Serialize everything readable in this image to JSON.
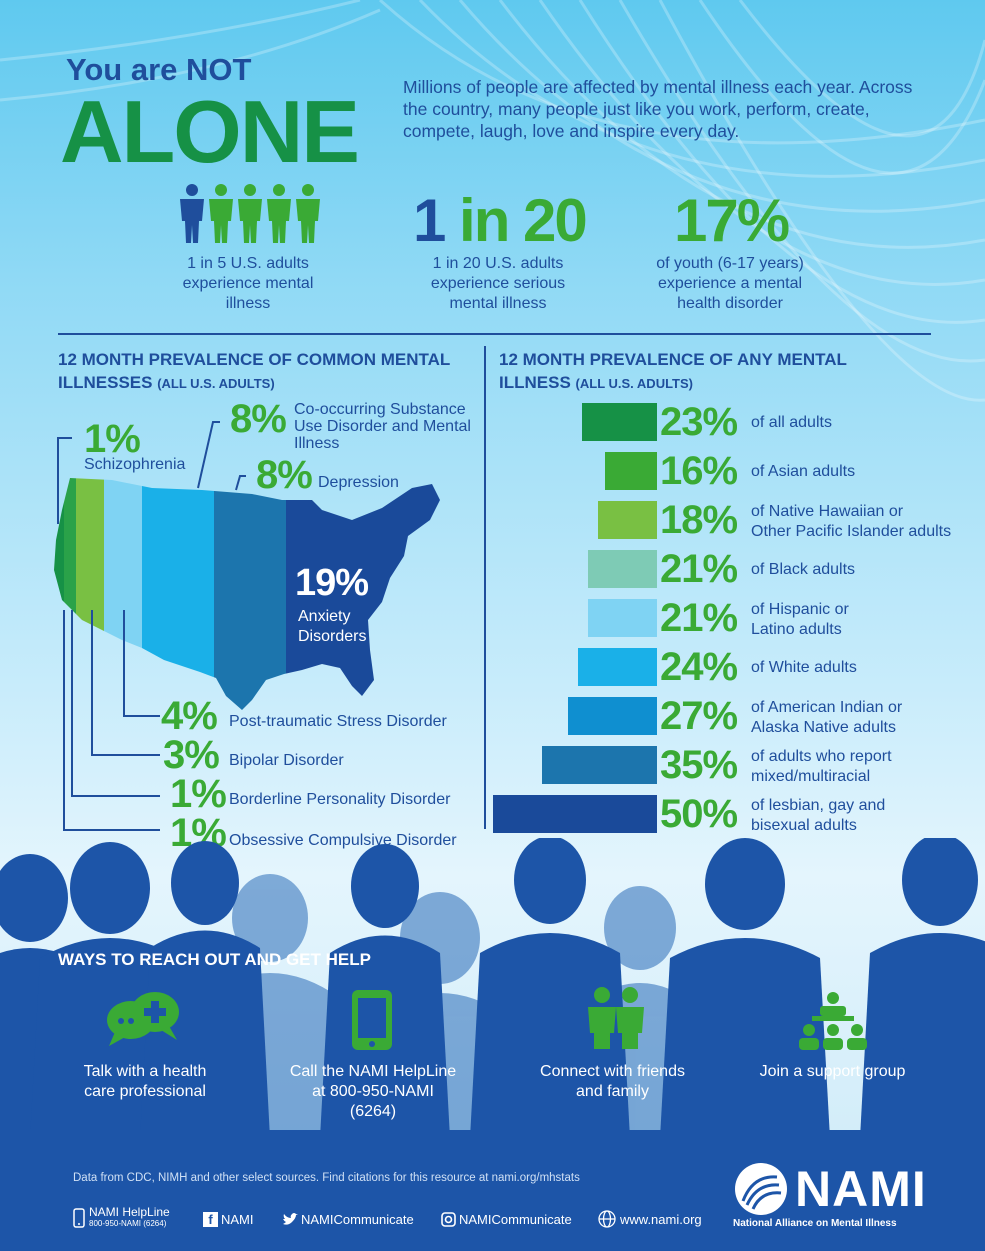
{
  "header": {
    "title_top": "You are NOT",
    "title_big": "ALONE",
    "intro": "Millions of people are affected by mental illness each year. Across the country, many people just like you work, perform, create, compete, laugh, love and inspire every day."
  },
  "stats": [
    {
      "label": "1 in 5 U.S. adults experience mental illness"
    },
    {
      "big_a": "1",
      "big_b": " in 20",
      "label": "1 in 20 U.S. adults experience serious mental illness"
    },
    {
      "big": "17%",
      "label": "of youth (6-17 years) experience a mental health disorder"
    }
  ],
  "left_section": {
    "title": "12 MONTH PREVALENCE OF COMMON MENTAL ILLNESSES",
    "subtitle": "(ALL U.S. ADULTS)",
    "items": [
      {
        "pct": "1%",
        "label": "Schizophrenia"
      },
      {
        "pct": "8%",
        "label": "Co-occurring Substance Use Disorder and Mental Illness"
      },
      {
        "pct": "8%",
        "label": "Depression"
      },
      {
        "pct": "19%",
        "label": "Anxiety Disorders"
      },
      {
        "pct": "4%",
        "label": "Post-traumatic Stress Disorder"
      },
      {
        "pct": "3%",
        "label": "Bipolar Disorder"
      },
      {
        "pct": "1%",
        "label": "Borderline Personality Disorder"
      },
      {
        "pct": "1%",
        "label": "Obsessive Compulsive Disorder"
      }
    ]
  },
  "right_section": {
    "title_line1": "12 MONTH PREVALENCE OF ANY MENTAL",
    "title_line2": "ILLNESS",
    "subtitle": "(ALL U.S. ADULTS)"
  },
  "chart_data": {
    "type": "bar",
    "orientation": "horizontal",
    "categories": [
      "of all adults",
      "of Asian adults",
      "of Native Hawaiian or Other Pacific Islander adults",
      "of Black adults",
      "of Hispanic or Latino adults",
      "of White adults",
      "of American Indian or Alaska Native adults",
      "of adults who report mixed/multiracial",
      "of lesbian, gay and bisexual adults"
    ],
    "values": [
      23,
      16,
      18,
      21,
      21,
      24,
      27,
      35,
      50
    ],
    "labels": [
      "23%",
      "16%",
      "18%",
      "21%",
      "21%",
      "24%",
      "27%",
      "35%",
      "50%"
    ],
    "label_lines": [
      [
        "of all adults"
      ],
      [
        "of Asian adults"
      ],
      [
        "of Native Hawaiian or",
        "Other Pacific Islander adults"
      ],
      [
        "of Black adults"
      ],
      [
        "of Hispanic or",
        "Latino adults"
      ],
      [
        "of White adults"
      ],
      [
        "of American Indian or",
        "Alaska Native adults"
      ],
      [
        "of adults who report",
        "mixed/multiracial"
      ],
      [
        "of lesbian, gay and",
        "bisexual adults"
      ]
    ],
    "colors": [
      "#169146",
      "#3aaa35",
      "#79c043",
      "#7ecbb5",
      "#7fd3f3",
      "#1ab0e8",
      "#0f8fd0",
      "#1c75ad",
      "#1a4a9a"
    ]
  },
  "help": {
    "title": "WAYS TO REACH OUT AND GET HELP",
    "items": [
      {
        "icon": "chat-plus-icon",
        "label": "Talk with a health care professional"
      },
      {
        "icon": "phone-icon",
        "label": "Call the NAMI HelpLine at 800-950-NAMI (6264)"
      },
      {
        "icon": "people-icon",
        "label": "Connect with friends and family"
      },
      {
        "icon": "group-icon",
        "label": "Join a support group"
      }
    ]
  },
  "footer": {
    "source": "Data from CDC, NIMH and other select sources. Find citations for this resource at nami.org/mhstats",
    "helpline_label": "NAMI HelpLine",
    "helpline_number": "800-950-NAMI (6264)",
    "facebook": "NAMI",
    "twitter": "NAMICommunicate",
    "instagram": "NAMICommunicate",
    "web": "www.nami.org",
    "logo": "NAMI",
    "logo_tagline": "National Alliance on Mental Illness"
  }
}
